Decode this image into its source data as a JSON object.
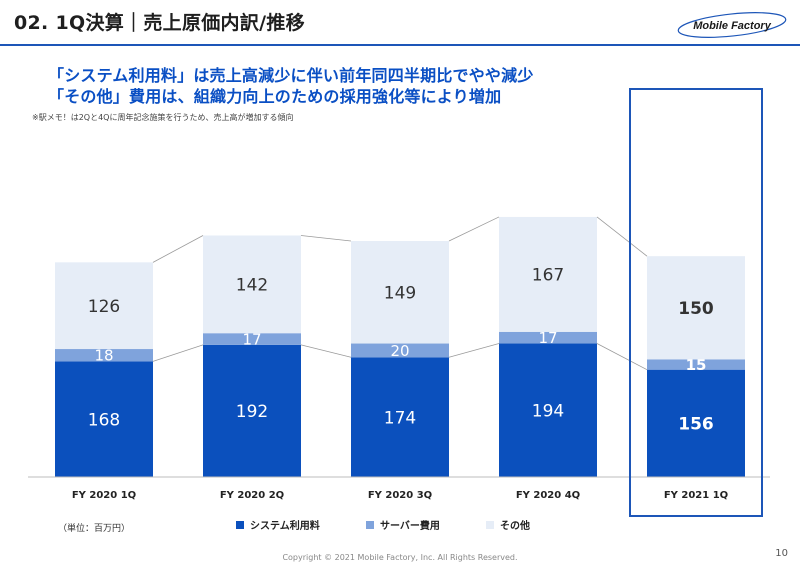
{
  "header": {
    "title": "02. 1Q決算｜売上原価内訳/推移",
    "logo_text": "Mobile Factory"
  },
  "headline": {
    "line1": "「システム利用料」は売上高減少に伴い前年同四半期比でやや減少",
    "line2": "「その他」費用は、組織力向上のための採用強化等により増加"
  },
  "note": "※駅メモ！は2Qと4Qに周年記念施策を行うため、売上高が増加する傾向",
  "unit_label": "（単位：百万円）",
  "colors": {
    "system": "#0b50bd",
    "server": "#7fa3dc",
    "other": "#e6edf7",
    "highlight_border": "#1d56b8",
    "headline": "#0a4fc4"
  },
  "chart_data": {
    "type": "bar",
    "stacked": true,
    "categories": [
      "FY 2020 1Q",
      "FY 2020 2Q",
      "FY 2020 3Q",
      "FY 2020 4Q",
      "FY 2021 1Q"
    ],
    "series": [
      {
        "name": "システム利用料",
        "values": [
          168,
          192,
          174,
          194,
          156
        ]
      },
      {
        "name": "サーバー費用",
        "values": [
          18,
          17,
          20,
          17,
          15
        ]
      },
      {
        "name": "その他",
        "values": [
          126,
          142,
          149,
          167,
          150
        ]
      }
    ],
    "highlighted_category": "FY 2021 1Q",
    "legend_position": "bottom"
  },
  "footer": {
    "copyright": "Copyright © 2021 Mobile Factory, Inc. All Rights Reserved.",
    "page_number": "10"
  }
}
